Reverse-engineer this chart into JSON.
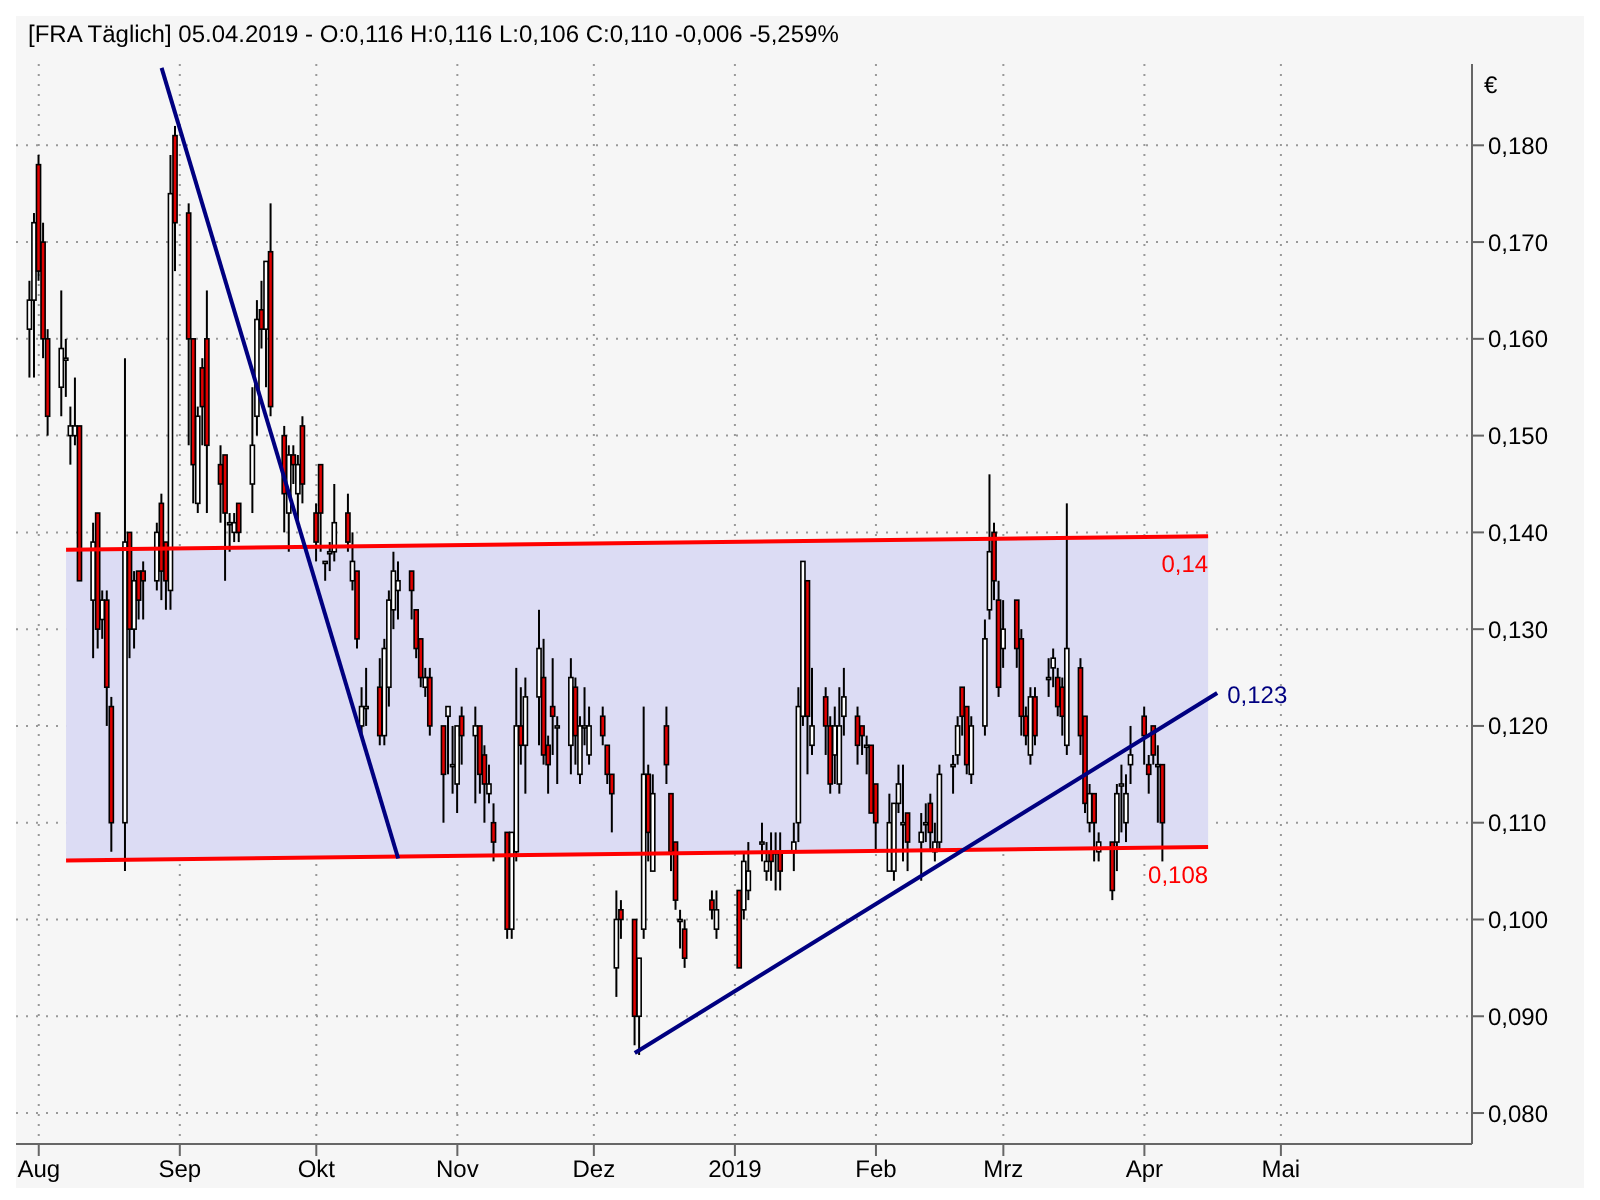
{
  "chart_data": {
    "type": "candlestick",
    "title": "[FRA  Täglich] 05.04.2019 - O:0,116 H:0,116 L:0,106 C:0,110 -0,006 -5,259%",
    "ylabel": "€",
    "x": [
      "2018-07-30",
      "2018-07-31",
      "2018-08-01",
      "2018-08-02",
      "2018-08-03",
      "2018-08-06",
      "2018-08-07",
      "2018-08-08",
      "2018-08-09",
      "2018-08-10",
      "2018-08-13",
      "2018-08-14",
      "2018-08-15",
      "2018-08-16",
      "2018-08-17",
      "2018-08-20",
      "2018-08-21",
      "2018-08-22",
      "2018-08-23",
      "2018-08-24",
      "2018-08-27",
      "2018-08-28",
      "2018-08-29",
      "2018-08-30",
      "2018-08-31",
      "2018-09-03",
      "2018-09-04",
      "2018-09-05",
      "2018-09-06",
      "2018-09-07",
      "2018-09-10",
      "2018-09-11",
      "2018-09-12",
      "2018-09-13",
      "2018-09-14",
      "2018-09-17",
      "2018-09-18",
      "2018-09-19",
      "2018-09-20",
      "2018-09-21",
      "2018-09-24",
      "2018-09-25",
      "2018-09-26",
      "2018-09-27",
      "2018-09-28",
      "2018-10-01",
      "2018-10-02",
      "2018-10-03",
      "2018-10-04",
      "2018-10-05",
      "2018-10-08",
      "2018-10-09",
      "2018-10-10",
      "2018-10-11",
      "2018-10-12",
      "2018-10-15",
      "2018-10-16",
      "2018-10-17",
      "2018-10-18",
      "2018-10-19",
      "2018-10-22",
      "2018-10-23",
      "2018-10-24",
      "2018-10-25",
      "2018-10-26",
      "2018-10-29",
      "2018-10-30",
      "2018-10-31",
      "2018-11-01",
      "2018-11-02",
      "2018-11-05",
      "2018-11-06",
      "2018-11-07",
      "2018-11-08",
      "2018-11-09",
      "2018-11-12",
      "2018-11-13",
      "2018-11-14",
      "2018-11-15",
      "2018-11-16",
      "2018-11-19",
      "2018-11-20",
      "2018-11-21",
      "2018-11-22",
      "2018-11-23",
      "2018-11-26",
      "2018-11-27",
      "2018-11-28",
      "2018-11-29",
      "2018-11-30",
      "2018-12-03",
      "2018-12-04",
      "2018-12-05",
      "2018-12-06",
      "2018-12-07",
      "2018-12-10",
      "2018-12-11",
      "2018-12-12",
      "2018-12-13",
      "2018-12-14",
      "2018-12-17",
      "2018-12-18",
      "2018-12-19",
      "2018-12-20",
      "2018-12-21",
      "2018-12-27",
      "2018-12-28",
      "2019-01-02",
      "2019-01-03",
      "2019-01-04",
      "2019-01-07",
      "2019-01-08",
      "2019-01-09",
      "2019-01-10",
      "2019-01-11",
      "2019-01-14",
      "2019-01-15",
      "2019-01-16",
      "2019-01-17",
      "2019-01-18",
      "2019-01-21",
      "2019-01-22",
      "2019-01-23",
      "2019-01-24",
      "2019-01-25",
      "2019-01-28",
      "2019-01-29",
      "2019-01-30",
      "2019-01-31",
      "2019-02-01",
      "2019-02-04",
      "2019-02-05",
      "2019-02-06",
      "2019-02-07",
      "2019-02-08",
      "2019-02-11",
      "2019-02-12",
      "2019-02-13",
      "2019-02-14",
      "2019-02-15",
      "2019-02-18",
      "2019-02-19",
      "2019-02-20",
      "2019-02-21",
      "2019-02-22",
      "2019-02-25",
      "2019-02-26",
      "2019-02-27",
      "2019-02-28",
      "2019-03-01",
      "2019-03-04",
      "2019-03-05",
      "2019-03-06",
      "2019-03-07",
      "2019-03-08",
      "2019-03-11",
      "2019-03-12",
      "2019-03-13",
      "2019-03-14",
      "2019-03-15",
      "2019-03-18",
      "2019-03-19",
      "2019-03-20",
      "2019-03-21",
      "2019-03-22",
      "2019-03-25",
      "2019-03-26",
      "2019-03-27",
      "2019-03-28",
      "2019-03-29",
      "2019-04-01",
      "2019-04-02",
      "2019-04-03",
      "2019-04-04",
      "2019-04-05"
    ],
    "ohlc": [
      [
        0.161,
        0.166,
        0.156,
        0.164
      ],
      [
        0.164,
        0.173,
        0.156,
        0.172
      ],
      [
        0.178,
        0.179,
        0.166,
        0.167
      ],
      [
        0.17,
        0.172,
        0.158,
        0.16
      ],
      [
        0.16,
        0.161,
        0.15,
        0.152
      ],
      [
        0.155,
        0.165,
        0.152,
        0.159
      ],
      [
        0.158,
        0.16,
        0.154,
        0.158
      ],
      [
        0.15,
        0.153,
        0.147,
        0.151
      ],
      [
        0.15,
        0.156,
        0.149,
        0.151
      ],
      [
        0.151,
        0.151,
        0.135,
        0.135
      ],
      [
        0.133,
        0.141,
        0.127,
        0.139
      ],
      [
        0.142,
        0.142,
        0.128,
        0.13
      ],
      [
        0.131,
        0.134,
        0.129,
        0.133
      ],
      [
        0.133,
        0.134,
        0.12,
        0.124
      ],
      [
        0.122,
        0.123,
        0.107,
        0.11
      ],
      [
        0.11,
        0.158,
        0.105,
        0.139
      ],
      [
        0.14,
        0.14,
        0.127,
        0.13
      ],
      [
        0.13,
        0.136,
        0.128,
        0.135
      ],
      [
        0.136,
        0.136,
        0.131,
        0.133
      ],
      [
        0.136,
        0.137,
        0.131,
        0.135
      ],
      [
        0.135,
        0.141,
        0.134,
        0.14
      ],
      [
        0.143,
        0.144,
        0.133,
        0.136
      ],
      [
        0.139,
        0.139,
        0.132,
        0.135
      ],
      [
        0.134,
        0.179,
        0.132,
        0.175
      ],
      [
        0.181,
        0.182,
        0.167,
        0.172
      ],
      [
        0.173,
        0.174,
        0.149,
        0.16
      ],
      [
        0.16,
        0.16,
        0.143,
        0.147
      ],
      [
        0.143,
        0.153,
        0.142,
        0.152
      ],
      [
        0.157,
        0.158,
        0.149,
        0.153
      ],
      [
        0.16,
        0.165,
        0.142,
        0.149
      ],
      [
        0.147,
        0.149,
        0.141,
        0.145
      ],
      [
        0.148,
        0.148,
        0.135,
        0.142
      ],
      [
        0.141,
        0.142,
        0.138,
        0.141
      ],
      [
        0.14,
        0.142,
        0.139,
        0.141
      ],
      [
        0.143,
        0.143,
        0.139,
        0.14
      ],
      [
        0.145,
        0.155,
        0.142,
        0.149
      ],
      [
        0.152,
        0.164,
        0.15,
        0.162
      ],
      [
        0.163,
        0.166,
        0.159,
        0.161
      ],
      [
        0.161,
        0.168,
        0.155,
        0.168
      ],
      [
        0.169,
        0.174,
        0.152,
        0.153
      ],
      [
        0.15,
        0.151,
        0.14,
        0.144
      ],
      [
        0.142,
        0.149,
        0.138,
        0.148
      ],
      [
        0.148,
        0.149,
        0.145,
        0.147
      ],
      [
        0.144,
        0.148,
        0.141,
        0.147
      ],
      [
        0.151,
        0.152,
        0.143,
        0.145
      ],
      [
        0.142,
        0.143,
        0.137,
        0.139
      ],
      [
        0.147,
        0.147,
        0.138,
        0.142
      ],
      [
        0.137,
        0.137,
        0.135,
        0.137
      ],
      [
        0.138,
        0.139,
        0.136,
        0.138
      ],
      [
        0.138,
        0.145,
        0.137,
        0.141
      ],
      [
        0.142,
        0.144,
        0.138,
        0.139
      ],
      [
        0.135,
        0.14,
        0.134,
        0.137
      ],
      [
        0.136,
        0.136,
        0.128,
        0.129
      ],
      [
        0.12,
        0.124,
        0.119,
        0.122
      ],
      [
        0.122,
        0.126,
        0.12,
        0.122
      ],
      [
        0.124,
        0.127,
        0.118,
        0.119
      ],
      [
        0.119,
        0.129,
        0.118,
        0.128
      ],
      [
        0.124,
        0.134,
        0.122,
        0.133
      ],
      [
        0.132,
        0.138,
        0.13,
        0.136
      ],
      [
        0.134,
        0.137,
        0.131,
        0.135
      ],
      [
        0.136,
        0.136,
        0.131,
        0.134
      ],
      [
        0.132,
        0.132,
        0.127,
        0.128
      ],
      [
        0.129,
        0.129,
        0.124,
        0.125
      ],
      [
        0.124,
        0.126,
        0.123,
        0.125
      ],
      [
        0.125,
        0.126,
        0.119,
        0.12
      ],
      [
        0.12,
        0.12,
        0.11,
        0.115
      ],
      [
        0.121,
        0.122,
        0.115,
        0.122
      ],
      [
        0.116,
        0.12,
        0.113,
        0.116
      ],
      [
        0.114,
        0.12,
        0.111,
        0.12
      ],
      [
        0.121,
        0.122,
        0.116,
        0.119
      ],
      [
        0.119,
        0.122,
        0.112,
        0.12
      ],
      [
        0.12,
        0.12,
        0.113,
        0.115
      ],
      [
        0.117,
        0.118,
        0.11,
        0.114
      ],
      [
        0.113,
        0.116,
        0.112,
        0.114
      ],
      [
        0.11,
        0.112,
        0.106,
        0.108
      ],
      [
        0.109,
        0.109,
        0.098,
        0.099
      ],
      [
        0.099,
        0.109,
        0.098,
        0.109
      ],
      [
        0.107,
        0.126,
        0.106,
        0.12
      ],
      [
        0.12,
        0.124,
        0.116,
        0.118
      ],
      [
        0.118,
        0.125,
        0.113,
        0.123
      ],
      [
        0.123,
        0.132,
        0.118,
        0.128
      ],
      [
        0.125,
        0.129,
        0.116,
        0.117
      ],
      [
        0.118,
        0.119,
        0.113,
        0.116
      ],
      [
        0.122,
        0.127,
        0.117,
        0.121
      ],
      [
        0.12,
        0.121,
        0.114,
        0.12
      ],
      [
        0.118,
        0.127,
        0.115,
        0.125
      ],
      [
        0.124,
        0.125,
        0.116,
        0.119
      ],
      [
        0.115,
        0.121,
        0.114,
        0.12
      ],
      [
        0.12,
        0.124,
        0.118,
        0.12
      ],
      [
        0.117,
        0.122,
        0.116,
        0.12
      ],
      [
        0.121,
        0.122,
        0.118,
        0.119
      ],
      [
        0.118,
        0.118,
        0.114,
        0.115
      ],
      [
        0.115,
        0.115,
        0.109,
        0.113
      ],
      [
        0.095,
        0.103,
        0.092,
        0.1
      ],
      [
        0.101,
        0.102,
        0.098,
        0.1
      ],
      [
        0.1,
        0.1,
        0.087,
        0.09
      ],
      [
        0.09,
        0.096,
        0.086,
        0.096
      ],
      [
        0.099,
        0.122,
        0.098,
        0.115
      ],
      [
        0.115,
        0.116,
        0.106,
        0.109
      ],
      [
        0.105,
        0.115,
        0.105,
        0.113
      ],
      [
        0.12,
        0.122,
        0.114,
        0.116
      ],
      [
        0.113,
        0.113,
        0.105,
        0.107
      ],
      [
        0.108,
        0.108,
        0.101,
        0.102
      ],
      [
        0.1,
        0.101,
        0.097,
        0.1
      ],
      [
        0.099,
        0.1,
        0.095,
        0.096
      ],
      [
        0.102,
        0.103,
        0.1,
        0.101
      ],
      [
        0.099,
        0.103,
        0.098,
        0.101
      ],
      [
        0.103,
        0.103,
        0.095,
        0.095
      ],
      [
        0.101,
        0.107,
        0.1,
        0.106
      ],
      [
        0.103,
        0.108,
        0.102,
        0.105
      ],
      [
        0.108,
        0.11,
        0.106,
        0.108
      ],
      [
        0.105,
        0.108,
        0.104,
        0.106
      ],
      [
        0.107,
        0.109,
        0.104,
        0.106
      ],
      [
        0.107,
        0.109,
        0.103,
        0.107
      ],
      [
        0.107,
        0.109,
        0.103,
        0.105
      ],
      [
        0.107,
        0.11,
        0.105,
        0.108
      ],
      [
        0.11,
        0.124,
        0.108,
        0.122
      ],
      [
        0.121,
        0.137,
        0.12,
        0.137
      ],
      [
        0.135,
        0.135,
        0.115,
        0.121
      ],
      [
        0.118,
        0.126,
        0.117,
        0.12
      ],
      [
        0.123,
        0.124,
        0.117,
        0.12
      ],
      [
        0.12,
        0.121,
        0.113,
        0.114
      ],
      [
        0.117,
        0.122,
        0.114,
        0.12
      ],
      [
        0.114,
        0.124,
        0.113,
        0.12
      ],
      [
        0.121,
        0.126,
        0.119,
        0.123
      ],
      [
        0.121,
        0.122,
        0.116,
        0.118
      ],
      [
        0.12,
        0.12,
        0.117,
        0.119
      ],
      [
        0.118,
        0.119,
        0.115,
        0.118
      ],
      [
        0.118,
        0.118,
        0.111,
        0.111
      ],
      [
        0.114,
        0.114,
        0.107,
        0.11
      ],
      [
        0.105,
        0.113,
        0.105,
        0.11
      ],
      [
        0.105,
        0.112,
        0.104,
        0.112
      ],
      [
        0.112,
        0.116,
        0.111,
        0.114
      ],
      [
        0.11,
        0.116,
        0.106,
        0.11
      ],
      [
        0.111,
        0.111,
        0.105,
        0.108
      ],
      [
        0.108,
        0.111,
        0.104,
        0.109
      ],
      [
        0.11,
        0.112,
        0.108,
        0.11
      ],
      [
        0.112,
        0.113,
        0.107,
        0.109
      ],
      [
        0.107,
        0.11,
        0.106,
        0.108
      ],
      [
        0.108,
        0.116,
        0.107,
        0.115
      ],
      [
        0.116,
        0.117,
        0.113,
        0.116
      ],
      [
        0.117,
        0.121,
        0.116,
        0.12
      ],
      [
        0.124,
        0.124,
        0.119,
        0.121
      ],
      [
        0.122,
        0.122,
        0.115,
        0.116
      ],
      [
        0.115,
        0.121,
        0.114,
        0.12
      ],
      [
        0.12,
        0.131,
        0.119,
        0.129
      ],
      [
        0.132,
        0.146,
        0.131,
        0.138
      ],
      [
        0.14,
        0.141,
        0.133,
        0.135
      ],
      [
        0.133,
        0.135,
        0.123,
        0.124
      ],
      [
        0.128,
        0.133,
        0.126,
        0.13
      ],
      [
        0.133,
        0.133,
        0.126,
        0.128
      ],
      [
        0.129,
        0.13,
        0.119,
        0.121
      ],
      [
        0.121,
        0.122,
        0.118,
        0.119
      ],
      [
        0.117,
        0.124,
        0.116,
        0.123
      ],
      [
        0.123,
        0.124,
        0.118,
        0.119
      ],
      [
        0.125,
        0.127,
        0.123,
        0.125
      ],
      [
        0.126,
        0.128,
        0.124,
        0.127
      ],
      [
        0.125,
        0.126,
        0.121,
        0.122
      ],
      [
        0.124,
        0.125,
        0.119,
        0.121
      ],
      [
        0.118,
        0.143,
        0.117,
        0.128
      ],
      [
        0.126,
        0.127,
        0.117,
        0.119
      ],
      [
        0.121,
        0.121,
        0.111,
        0.112
      ],
      [
        0.11,
        0.114,
        0.109,
        0.113
      ],
      [
        0.113,
        0.113,
        0.106,
        0.11
      ],
      [
        0.107,
        0.109,
        0.106,
        0.108
      ],
      [
        0.108,
        0.108,
        0.102,
        0.103
      ],
      [
        0.108,
        0.114,
        0.105,
        0.113
      ],
      [
        0.114,
        0.116,
        0.109,
        0.114
      ],
      [
        0.11,
        0.115,
        0.108,
        0.113
      ],
      [
        0.116,
        0.12,
        0.114,
        0.117
      ],
      [
        0.121,
        0.122,
        0.116,
        0.119
      ],
      [
        0.116,
        0.117,
        0.113,
        0.115
      ],
      [
        0.12,
        0.12,
        0.116,
        0.117
      ],
      [
        0.116,
        0.118,
        0.11,
        0.116
      ],
      [
        0.116,
        0.116,
        0.106,
        0.11
      ]
    ],
    "series": [
      {
        "type": "line",
        "color": "#ff0000",
        "x": [
          "2018-08-07",
          "2019-04-15"
        ],
        "values": [
          0.1382,
          0.1396
        ],
        "lower": [
          0.1061,
          0.1075
        ],
        "upper": [
          0.1382,
          0.1396
        ],
        "value_labels": [
          null,
          "0,14"
        ]
      },
      {
        "type": "line",
        "color": "#ff0000",
        "x": [
          "2018-08-07",
          "2019-04-15"
        ],
        "values": [
          0.1061,
          0.1075
        ],
        "value_labels": [
          null,
          "0,108"
        ]
      },
      {
        "type": "line",
        "color": "#000080",
        "x": [
          "2018-08-28",
          "2018-10-19"
        ],
        "values": [
          0.188,
          0.1063
        ]
      },
      {
        "type": "line",
        "color": "#000080",
        "x": [
          "2018-12-10",
          "2019-04-17"
        ],
        "values": [
          0.0862,
          0.1234
        ],
        "value_labels": [
          null,
          "0,123"
        ]
      }
    ],
    "xlim": [
      "2018-07-27",
      "2019-06-12"
    ],
    "xticks": [
      {
        "value": "2018-08-01",
        "label": "Aug"
      },
      {
        "value": "2018-09-01",
        "label": "Sep"
      },
      {
        "value": "2018-10-01",
        "label": "Okt"
      },
      {
        "value": "2018-11-01",
        "label": "Nov"
      },
      {
        "value": "2018-12-01",
        "label": "Dez"
      },
      {
        "value": "2019-01-01",
        "label": "2019"
      },
      {
        "value": "2019-02-01",
        "label": "Feb"
      },
      {
        "value": "2019-03-01",
        "label": "Mrz"
      },
      {
        "value": "2019-04-01",
        "label": "Apr"
      },
      {
        "value": "2019-05-01",
        "label": "Mai"
      }
    ],
    "ylim": [
      0.0768,
      0.1884
    ],
    "yticks": [
      {
        "value": 0.08,
        "label": "0,080"
      },
      {
        "value": 0.09,
        "label": "0,090"
      },
      {
        "value": 0.1,
        "label": "0,100"
      },
      {
        "value": 0.11,
        "label": "0,110"
      },
      {
        "value": 0.12,
        "label": "0,120"
      },
      {
        "value": 0.13,
        "label": "0,130"
      },
      {
        "value": 0.14,
        "label": "0,140"
      },
      {
        "value": 0.15,
        "label": "0,150"
      },
      {
        "value": 0.16,
        "label": "0,160"
      },
      {
        "value": 0.17,
        "label": "0,170"
      },
      {
        "value": 0.18,
        "label": "0,180"
      }
    ],
    "grid": true
  }
}
